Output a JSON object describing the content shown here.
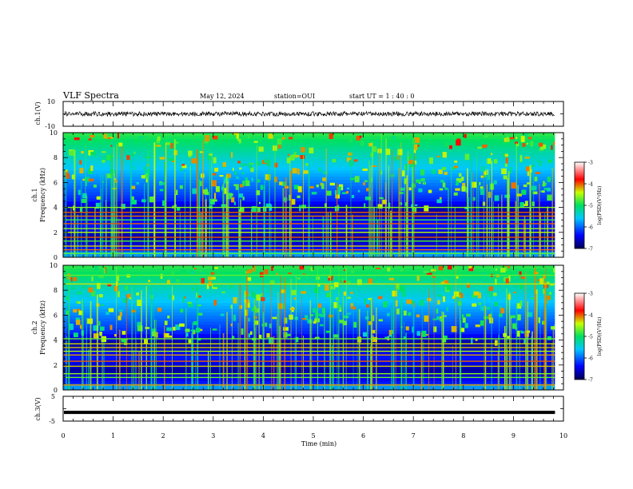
{
  "header": {
    "title": "VLF Spectra",
    "date": "May 12, 2024",
    "station": "station=OUI",
    "start": "start  UT =   1 : 40 : 0"
  },
  "chart_data": [
    {
      "type": "line",
      "panel": "ch1-waveform",
      "ylabel": "ch.1(V)",
      "ylim": [
        -10,
        10
      ],
      "yticks": [
        10,
        -10
      ],
      "xlim": [
        0,
        10
      ],
      "data_end_min": 9.83,
      "envelope": [
        -1.8,
        1.8
      ],
      "color": "#000000"
    },
    {
      "type": "heatmap",
      "panel": "ch1-spectrogram",
      "ylabel_top": "ch.1",
      "ylabel": "Frequency (kHz)",
      "ylim": [
        0,
        10
      ],
      "yticks": [
        0,
        2,
        4,
        6,
        8,
        10
      ],
      "xlim": [
        0,
        10
      ],
      "colorbar": {
        "label": "log(PSD)(V²/Hz)",
        "range": [
          -7,
          -3
        ],
        "ticks": [
          -3,
          -4,
          -5,
          -6,
          -7
        ]
      },
      "bands_khz": [
        0.3,
        0.6,
        0.9,
        1.3,
        1.6,
        2.0,
        2.3,
        2.7,
        3.0,
        3.3,
        3.6,
        4.0
      ]
    },
    {
      "type": "heatmap",
      "panel": "ch2-spectrogram",
      "ylabel_top": "ch.2",
      "ylabel": "Frequency (kHz)",
      "ylim": [
        0,
        10
      ],
      "yticks": [
        0,
        2,
        4,
        6,
        8,
        10
      ],
      "xlim": [
        0,
        10
      ],
      "colorbar": {
        "label": "log(PSD)(V²/Hz)",
        "range": [
          -7,
          -3
        ],
        "ticks": [
          -3,
          -4,
          -5,
          -6,
          -7
        ]
      },
      "bands_khz": [
        0.4,
        1.0,
        1.3,
        1.9,
        2.3,
        2.8,
        3.1,
        3.4,
        3.7,
        4.1,
        8.5,
        9.2
      ]
    },
    {
      "type": "line",
      "panel": "ch3-waveform",
      "ylabel": "ch.3(V)",
      "ylim": [
        -5,
        5
      ],
      "yticks": [
        5,
        0,
        -5
      ],
      "xlim": [
        0,
        10
      ],
      "data_end_min": 9.83,
      "constant_level": -1.5,
      "color": "#000000"
    }
  ],
  "xaxis": {
    "label": "Time (min)",
    "ticks": [
      "0",
      "1",
      "2",
      "3",
      "4",
      "5",
      "6",
      "7",
      "8",
      "9",
      "10"
    ]
  }
}
